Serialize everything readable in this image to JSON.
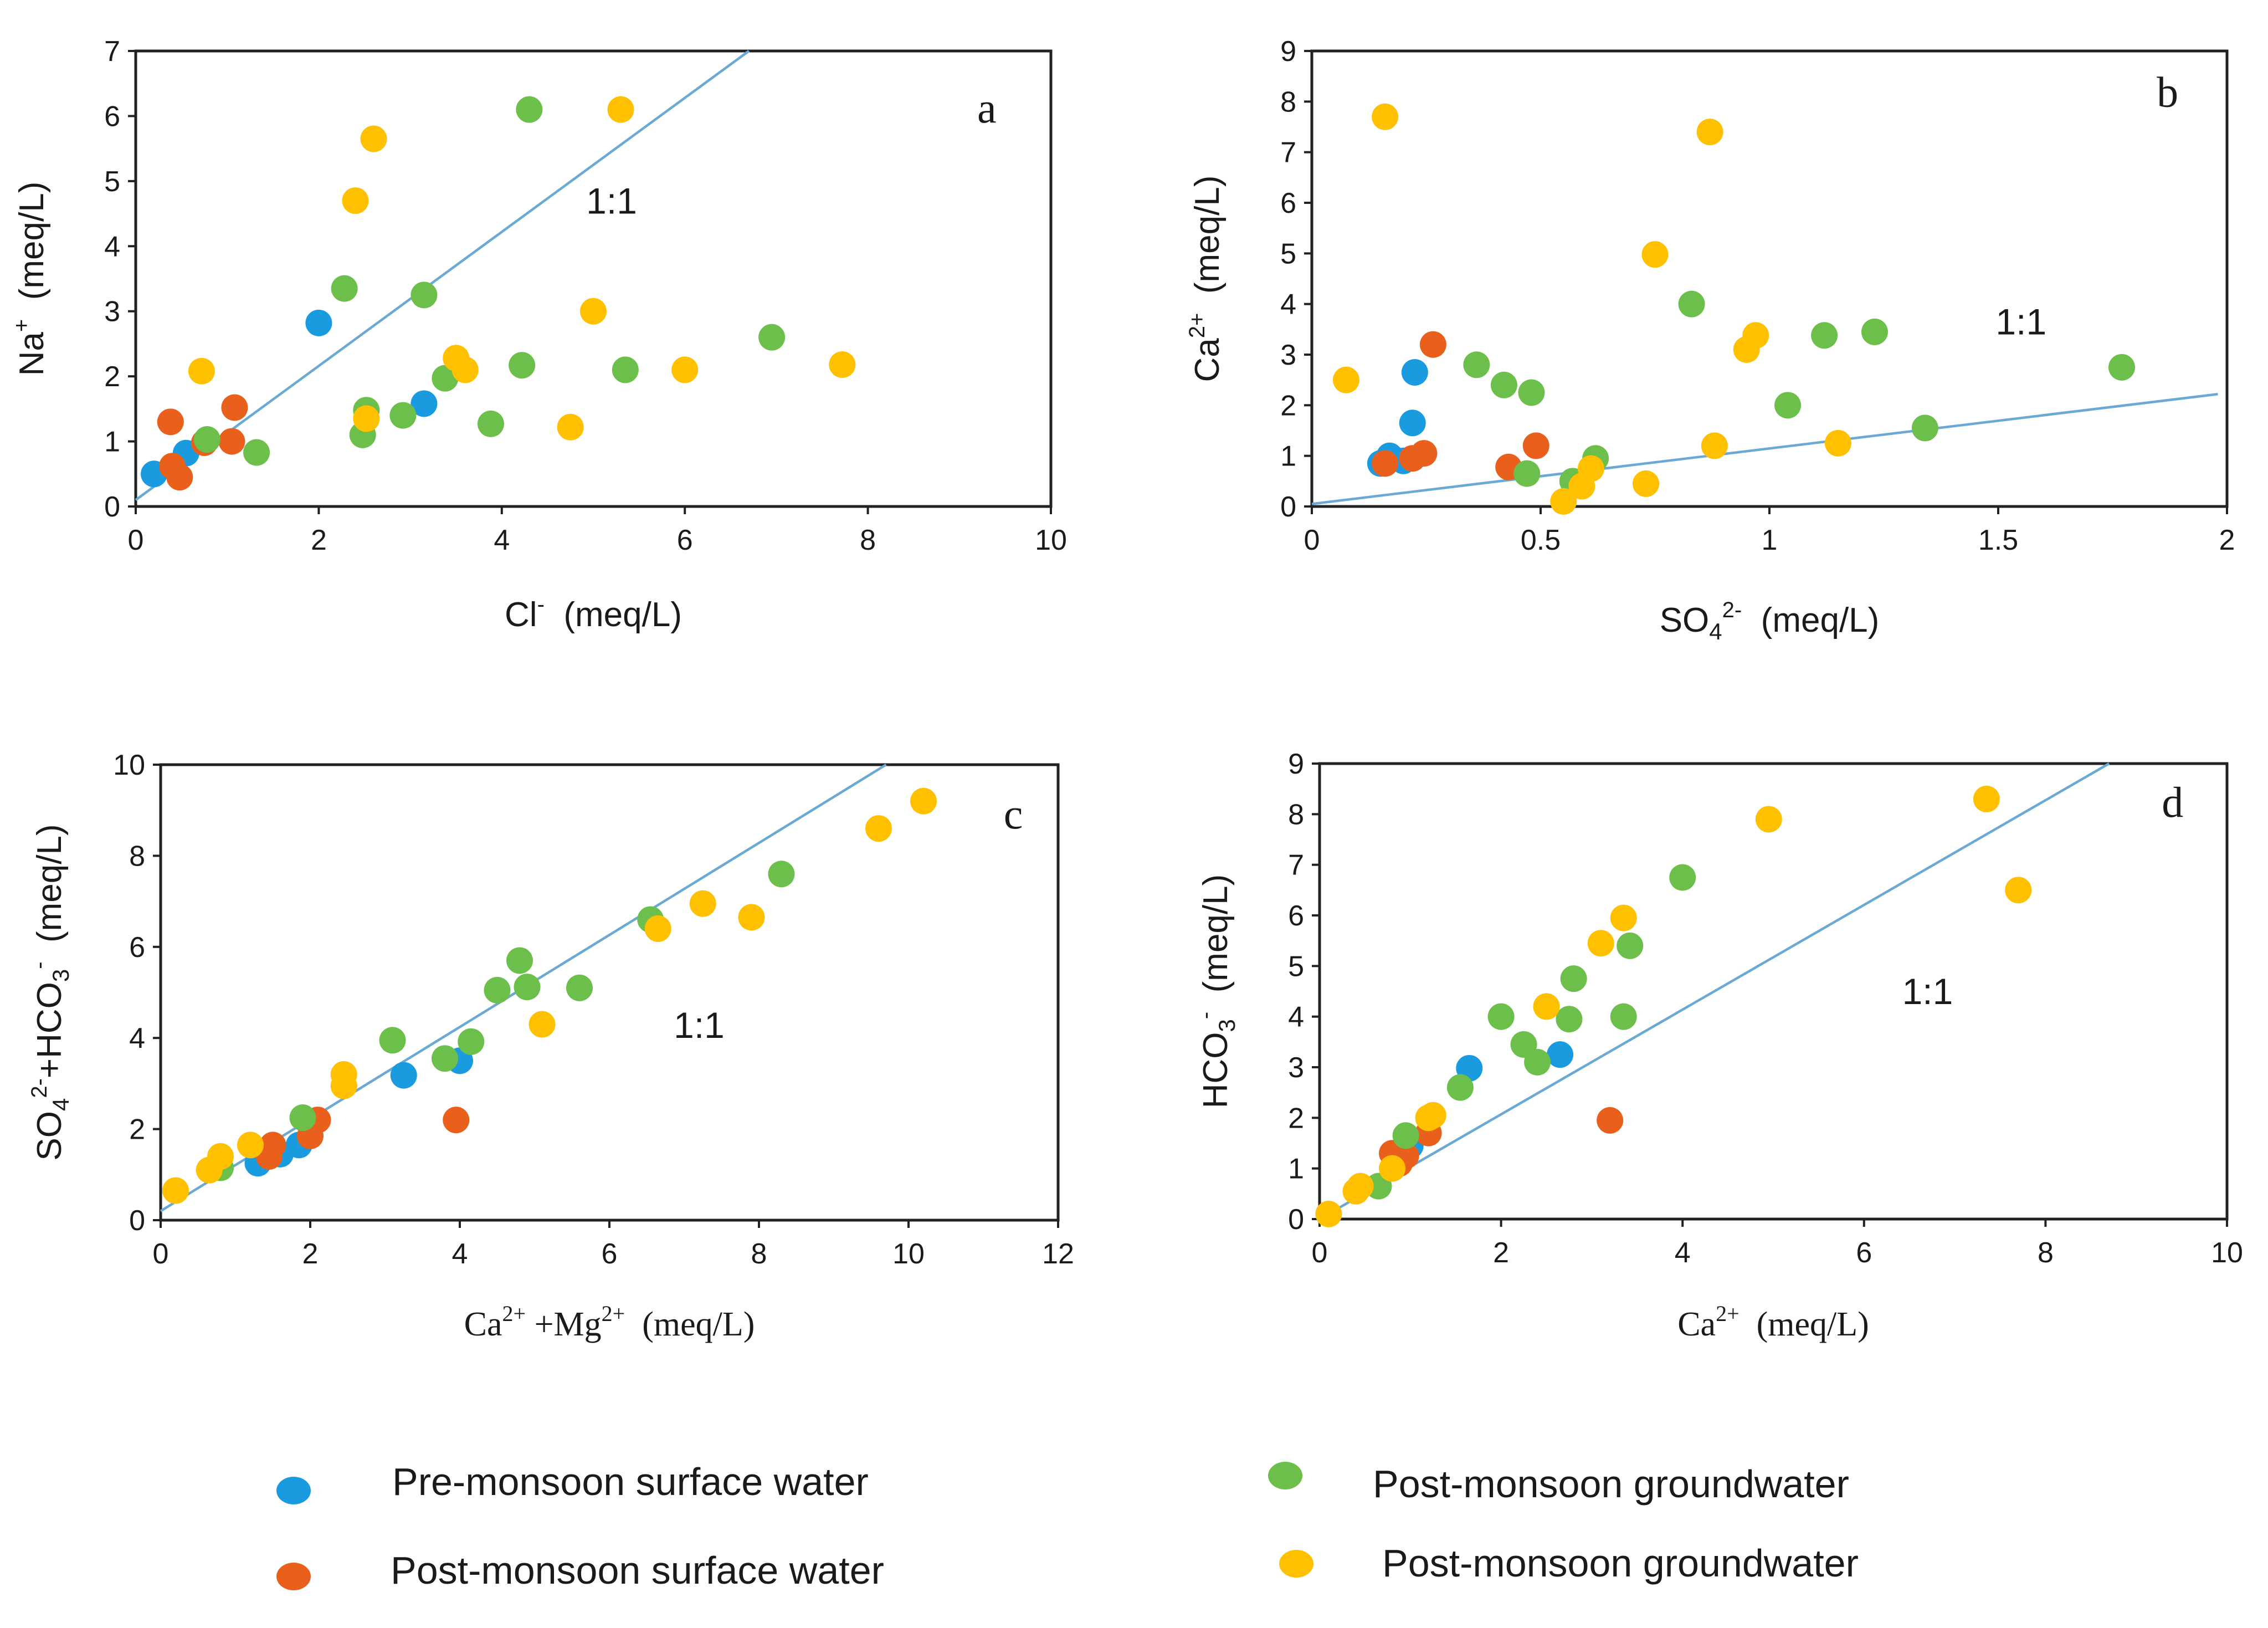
{
  "colors": {
    "pre_surface": "#1a9be0",
    "post_surface": "#e8601c",
    "post_gw_green": "#6cbf4b",
    "post_gw_yellow": "#ffc000",
    "ref_line": "#6aa9d4"
  },
  "legend": [
    {
      "label": "Pre-monsoon surface water",
      "color_key": "pre_surface"
    },
    {
      "label": "Post-monsoon groundwater",
      "color_key": "post_gw_green"
    },
    {
      "label": "Post-monsoon surface water",
      "color_key": "post_surface"
    },
    {
      "label": "Post-monsoon groundwater",
      "color_key": "post_gw_yellow"
    }
  ],
  "chart_data": [
    {
      "id": "a",
      "type": "scatter",
      "panel_label": "a",
      "ratio_label": "1:1",
      "ratio_at": [
        5.2,
        4.5
      ],
      "letter_at": [
        9.3,
        5.9
      ],
      "xlabel": {
        "base": "Cl",
        "sup": "-",
        "unit": "(meq/L)"
      },
      "ylabel": {
        "base": "Na",
        "sup": "+",
        "unit": "(meq/L)"
      },
      "xlim": [
        0,
        10
      ],
      "ylim": [
        0,
        7
      ],
      "xticks": [
        "0",
        "2",
        "4",
        "6",
        "8",
        "10"
      ],
      "yticks": [
        "0",
        "1",
        "2",
        "3",
        "4",
        "5",
        "6",
        "7"
      ],
      "ref_line": [
        [
          0,
          0.1
        ],
        [
          6.7,
          7
        ]
      ],
      "series": [
        {
          "name": "Pre-monsoon surface water",
          "color_key": "pre_surface",
          "points": [
            [
              0.2,
              0.5
            ],
            [
              0.55,
              0.82
            ],
            [
              2.0,
              2.82
            ],
            [
              3.15,
              1.58
            ]
          ]
        },
        {
          "name": "Post-monsoon surface water",
          "color_key": "post_surface",
          "points": [
            [
              0.38,
              1.3
            ],
            [
              0.4,
              0.62
            ],
            [
              0.48,
              0.45
            ],
            [
              0.75,
              0.98
            ],
            [
              1.05,
              1.0
            ],
            [
              1.08,
              1.52
            ]
          ]
        },
        {
          "name": "Post-monsoon groundwater (green)",
          "color_key": "post_gw_green",
          "points": [
            [
              0.78,
              1.03
            ],
            [
              1.32,
              0.83
            ],
            [
              2.28,
              3.35
            ],
            [
              2.48,
              1.1
            ],
            [
              2.52,
              1.48
            ],
            [
              2.92,
              1.4
            ],
            [
              3.15,
              3.25
            ],
            [
              3.38,
              1.97
            ],
            [
              3.88,
              1.27
            ],
            [
              4.22,
              2.17
            ],
            [
              4.3,
              6.1
            ],
            [
              5.35,
              2.1
            ],
            [
              6.95,
              2.6
            ]
          ]
        },
        {
          "name": "Post-monsoon groundwater (yellow)",
          "color_key": "post_gw_yellow",
          "points": [
            [
              0.72,
              2.08
            ],
            [
              2.4,
              4.7
            ],
            [
              2.52,
              1.35
            ],
            [
              2.6,
              5.65
            ],
            [
              3.5,
              2.28
            ],
            [
              3.6,
              2.1
            ],
            [
              4.75,
              1.22
            ],
            [
              5.0,
              3.0
            ],
            [
              5.3,
              6.1
            ],
            [
              6.0,
              2.1
            ],
            [
              7.72,
              2.18
            ]
          ]
        }
      ]
    },
    {
      "id": "b",
      "type": "scatter",
      "panel_label": "b",
      "ratio_label": "1:1",
      "ratio_at": [
        1.55,
        3.4
      ],
      "letter_at": [
        1.87,
        7.9
      ],
      "xlabel": {
        "base": "SO",
        "sub": "4",
        "sup": "2-",
        "unit": "(meq/L)"
      },
      "ylabel": {
        "base": "Ca",
        "sup": "2+",
        "unit": "(meq/L)"
      },
      "xlim": [
        0,
        2
      ],
      "ylim": [
        0,
        9
      ],
      "xticks": [
        "0",
        "0.5",
        "1",
        "1.5",
        "2"
      ],
      "yticks": [
        "0",
        "1",
        "2",
        "3",
        "4",
        "5",
        "6",
        "7",
        "8",
        "9"
      ],
      "ref_line": [
        [
          0,
          0.05
        ],
        [
          1.98,
          2.22
        ]
      ],
      "series": [
        {
          "name": "Pre-monsoon surface water",
          "color_key": "pre_surface",
          "points": [
            [
              0.15,
              0.85
            ],
            [
              0.17,
              1.0
            ],
            [
              0.2,
              0.9
            ],
            [
              0.22,
              1.65
            ],
            [
              0.225,
              2.65
            ]
          ]
        },
        {
          "name": "Post-monsoon surface water",
          "color_key": "post_surface",
          "points": [
            [
              0.16,
              0.85
            ],
            [
              0.22,
              0.95
            ],
            [
              0.245,
              1.05
            ],
            [
              0.265,
              3.2
            ],
            [
              0.43,
              0.78
            ],
            [
              0.49,
              1.2
            ]
          ]
        },
        {
          "name": "Post-monsoon groundwater (green)",
          "color_key": "post_gw_green",
          "points": [
            [
              0.36,
              2.8
            ],
            [
              0.42,
              2.4
            ],
            [
              0.47,
              0.65
            ],
            [
              0.48,
              2.25
            ],
            [
              0.57,
              0.5
            ],
            [
              0.62,
              0.95
            ],
            [
              0.83,
              4.0
            ],
            [
              1.04,
              2.0
            ],
            [
              1.12,
              3.38
            ],
            [
              1.23,
              3.45
            ],
            [
              1.34,
              1.55
            ],
            [
              1.77,
              2.75
            ]
          ]
        },
        {
          "name": "Post-monsoon groundwater (yellow)",
          "color_key": "post_gw_yellow",
          "points": [
            [
              0.075,
              2.5
            ],
            [
              0.16,
              7.7
            ],
            [
              0.55,
              0.1
            ],
            [
              0.59,
              0.4
            ],
            [
              0.61,
              0.75
            ],
            [
              0.73,
              0.45
            ],
            [
              0.75,
              4.98
            ],
            [
              0.87,
              7.4
            ],
            [
              0.88,
              1.2
            ],
            [
              0.95,
              3.1
            ],
            [
              0.97,
              3.38
            ],
            [
              1.15,
              1.25
            ]
          ]
        }
      ]
    },
    {
      "id": "c",
      "type": "scatter",
      "panel_label": "c",
      "ratio_label": "1:1",
      "ratio_at": [
        7.2,
        4.0
      ],
      "letter_at": [
        11.4,
        8.6
      ],
      "xlabel": {
        "base": "Ca",
        "sup": "2+",
        "base2": " +Mg",
        "sup2": "2+",
        "unit": "(meq/L)"
      },
      "ylabel": {
        "base": "SO",
        "sub": "4",
        "sup": "2-",
        "base2": "+HCO",
        "sub2": "3",
        "sup2": "-",
        "unit": "(meq/L)"
      },
      "xlim": [
        0,
        12
      ],
      "ylim": [
        0,
        10
      ],
      "xticks": [
        "0",
        "2",
        "4",
        "6",
        "8",
        "10",
        "12"
      ],
      "yticks": [
        "0",
        "2",
        "4",
        "6",
        "8",
        "10"
      ],
      "ref_line": [
        [
          0,
          0.2
        ],
        [
          9.7,
          10
        ]
      ],
      "series": [
        {
          "name": "Pre-monsoon surface water",
          "color_key": "pre_surface",
          "points": [
            [
              1.3,
              1.25
            ],
            [
              1.6,
              1.45
            ],
            [
              1.85,
              1.65
            ],
            [
              3.25,
              3.18
            ],
            [
              4.0,
              3.5
            ]
          ]
        },
        {
          "name": "Post-monsoon surface water",
          "color_key": "post_surface",
          "points": [
            [
              1.45,
              1.4
            ],
            [
              1.5,
              1.65
            ],
            [
              2.0,
              1.85
            ],
            [
              2.1,
              2.2
            ],
            [
              3.95,
              2.2
            ]
          ]
        },
        {
          "name": "Post-monsoon groundwater (green)",
          "color_key": "post_gw_green",
          "points": [
            [
              0.8,
              1.15
            ],
            [
              1.9,
              2.25
            ],
            [
              3.1,
              3.95
            ],
            [
              3.8,
              3.55
            ],
            [
              4.15,
              3.92
            ],
            [
              4.5,
              5.05
            ],
            [
              4.8,
              5.7
            ],
            [
              4.9,
              5.12
            ],
            [
              5.6,
              5.1
            ],
            [
              6.55,
              6.6
            ],
            [
              8.3,
              7.6
            ]
          ]
        },
        {
          "name": "Post-monsoon groundwater (yellow)",
          "color_key": "post_gw_yellow",
          "points": [
            [
              0.2,
              0.65
            ],
            [
              0.65,
              1.1
            ],
            [
              0.8,
              1.4
            ],
            [
              1.2,
              1.65
            ],
            [
              2.45,
              2.95
            ],
            [
              2.45,
              3.2
            ],
            [
              5.1,
              4.3
            ],
            [
              6.65,
              6.4
            ],
            [
              7.25,
              6.95
            ],
            [
              7.9,
              6.65
            ],
            [
              9.6,
              8.6
            ],
            [
              10.2,
              9.2
            ]
          ]
        }
      ]
    },
    {
      "id": "d",
      "type": "scatter",
      "panel_label": "d",
      "ratio_label": "1:1",
      "ratio_at": [
        6.7,
        4.25
      ],
      "letter_at": [
        9.4,
        7.95
      ],
      "xlabel": {
        "base": "Ca",
        "sup": "2+",
        "unit": "(meq/L)"
      },
      "ylabel": {
        "base": "HCO",
        "sub": "3",
        "sup": "-",
        "unit": "(meq/L)"
      },
      "xlim": [
        0,
        10
      ],
      "ylim": [
        0,
        9
      ],
      "xticks": [
        "0",
        "2",
        "4",
        "6",
        "8",
        "10"
      ],
      "yticks": [
        "0",
        "1",
        "2",
        "3",
        "4",
        "5",
        "6",
        "7",
        "8",
        "9"
      ],
      "ref_line": [
        [
          0,
          0
        ],
        [
          8.7,
          9
        ]
      ],
      "series": [
        {
          "name": "Pre-monsoon surface water",
          "color_key": "pre_surface",
          "points": [
            [
              0.85,
              1.2
            ],
            [
              1.0,
              1.45
            ],
            [
              1.65,
              2.98
            ],
            [
              2.65,
              3.25
            ]
          ]
        },
        {
          "name": "Post-monsoon surface water",
          "color_key": "post_surface",
          "points": [
            [
              0.8,
              1.3
            ],
            [
              0.88,
              1.1
            ],
            [
              0.95,
              1.25
            ],
            [
              1.2,
              1.7
            ],
            [
              3.2,
              1.95
            ]
          ]
        },
        {
          "name": "Post-monsoon groundwater (green)",
          "color_key": "post_gw_green",
          "points": [
            [
              0.65,
              0.65
            ],
            [
              0.95,
              1.65
            ],
            [
              1.55,
              2.6
            ],
            [
              2.0,
              4.0
            ],
            [
              2.25,
              3.45
            ],
            [
              2.4,
              3.1
            ],
            [
              2.75,
              3.95
            ],
            [
              2.8,
              4.75
            ],
            [
              3.35,
              4.0
            ],
            [
              3.42,
              5.4
            ],
            [
              4.0,
              6.75
            ]
          ]
        },
        {
          "name": "Post-monsoon groundwater (yellow)",
          "color_key": "post_gw_yellow",
          "points": [
            [
              0.1,
              0.1
            ],
            [
              0.4,
              0.55
            ],
            [
              0.45,
              0.65
            ],
            [
              0.8,
              1.0
            ],
            [
              1.2,
              2.0
            ],
            [
              1.25,
              2.05
            ],
            [
              2.5,
              4.2
            ],
            [
              3.1,
              5.45
            ],
            [
              3.35,
              5.95
            ],
            [
              4.95,
              7.9
            ],
            [
              7.35,
              8.3
            ],
            [
              7.7,
              6.5
            ]
          ]
        }
      ]
    }
  ]
}
